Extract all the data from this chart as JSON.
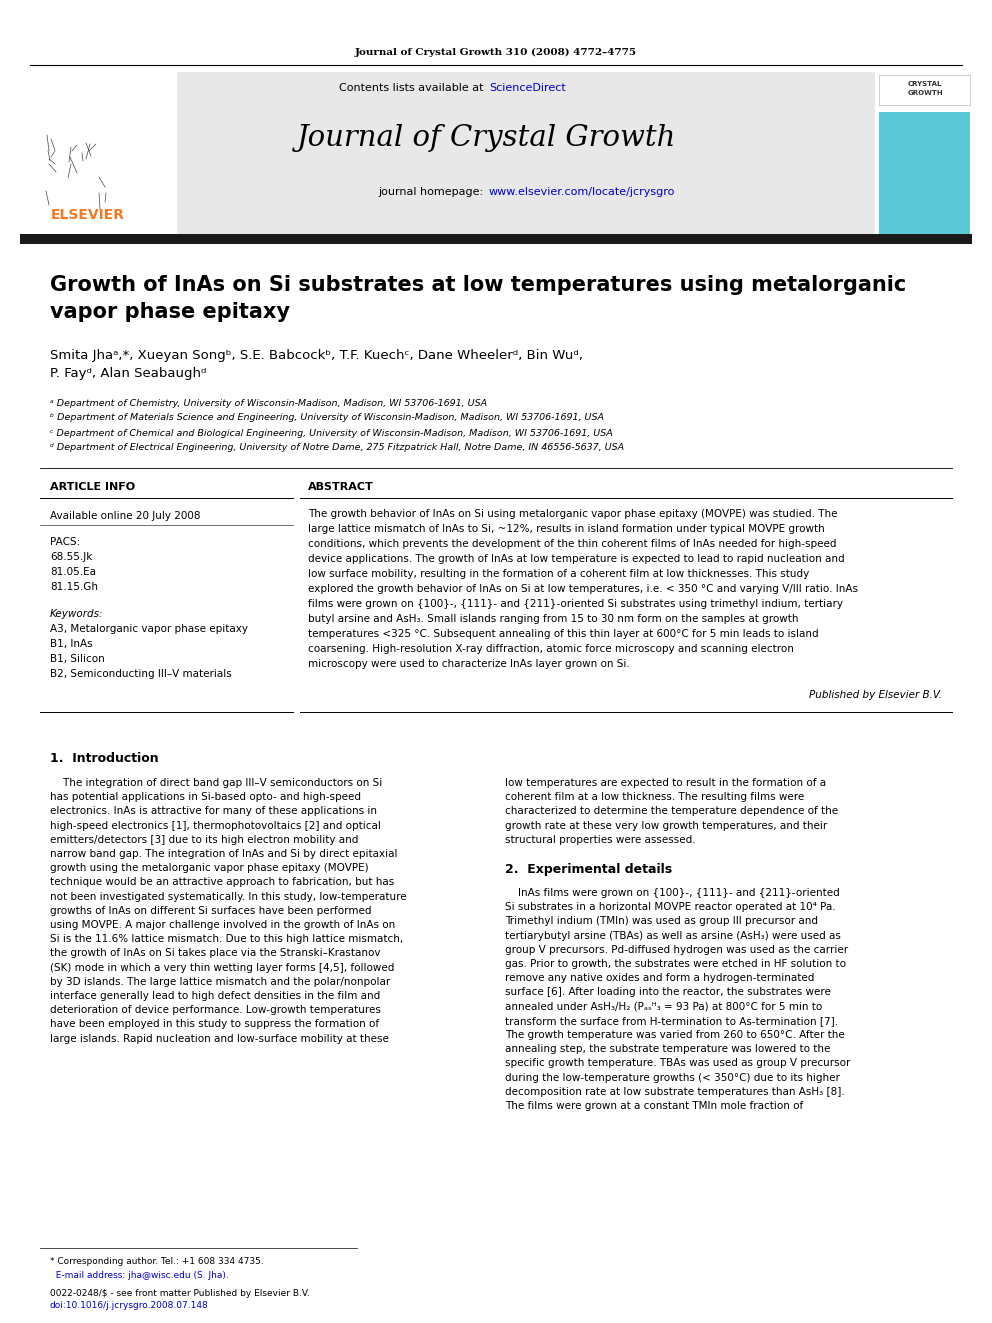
{
  "journal_ref": "Journal of Crystal Growth 310 (2008) 4772–4775",
  "contents_line": "Contents lists available at",
  "sciencedirect": "ScienceDirect",
  "journal_name": "Journal of Crystal Growth",
  "homepage_prefix": "journal homepage: ",
  "homepage_url": "www.elsevier.com/locate/jcrysgro",
  "title_line1": "Growth of InAs on Si substrates at low temperatures using metalorganic",
  "title_line2": "vapor phase epitaxy",
  "authors": "Smita Jhaᵃ,*, Xueyan Songᵇ, S.E. Babcockᵇ, T.F. Kuechᶜ, Dane Wheelerᵈ, Bin Wuᵈ,",
  "authors2": "P. Fayᵈ, Alan Seabaughᵈ",
  "affil_a": "ᵃ Department of Chemistry, University of Wisconsin-Madison, Madison, WI 53706-1691, USA",
  "affil_b": "ᵇ Department of Materials Science and Engineering, University of Wisconsin-Madison, Madison, WI 53706-1691, USA",
  "affil_c": "ᶜ Department of Chemical and Biological Engineering, University of Wisconsin-Madison, Madison, WI 53706-1691, USA",
  "affil_d": "ᵈ Department of Electrical Engineering, University of Notre Dame, 275 Fitzpatrick Hall, Notre Dame, IN 46556-5637, USA",
  "article_info_header": "ARTICLE INFO",
  "available": "Available online 20 July 2008",
  "pacs_header": "PACS:",
  "pacs1": "68.55.Jk",
  "pacs2": "81.05.Ea",
  "pacs3": "81.15.Gh",
  "keywords_header": "Keywords:",
  "kw1": "A3, Metalorganic vapor phase epitaxy",
  "kw2": "B1, InAs",
  "kw3": "B1, Silicon",
  "kw4": "B2, Semiconducting III–V materials",
  "abstract_header": "ABSTRACT",
  "abstract_text": "The growth behavior of InAs on Si using metalorganic vapor phase epitaxy (MOVPE) was studied. The\nlarge lattice mismatch of InAs to Si, ~12%, results in island formation under typical MOVPE growth\nconditions, which prevents the development of the thin coherent films of InAs needed for high-speed\ndevice applications. The growth of InAs at low temperature is expected to lead to rapid nucleation and\nlow surface mobility, resulting in the formation of a coherent film at low thicknesses. This study\nexplored the growth behavior of InAs on Si at low temperatures, i.e. < 350 °C and varying V/III ratio. InAs\nfilms were grown on {100}-, {111}- and {211}-oriented Si substrates using trimethyl indium, tertiary\nbutyl arsine and AsH₃. Small islands ranging from 15 to 30 nm form on the samples at growth\ntemperatures <325 °C. Subsequent annealing of this thin layer at 600°C for 5 min leads to island\ncoarsening. High-resolution X-ray diffraction, atomic force microscopy and scanning electron\nmicroscopy were used to characterize InAs layer grown on Si.",
  "published_by": "Published by Elsevier B.V.",
  "intro_header": "1.  Introduction",
  "intro_col1_lines": [
    "    The integration of direct band gap III–V semiconductors on Si",
    "has potential applications in Si-based opto- and high-speed",
    "electronics. InAs is attractive for many of these applications in",
    "high-speed electronics [1], thermophotovoltaics [2] and optical",
    "emitters/detectors [3] due to its high electron mobility and",
    "narrow band gap. The integration of InAs and Si by direct epitaxial",
    "growth using the metalorganic vapor phase epitaxy (MOVPE)",
    "technique would be an attractive approach to fabrication, but has",
    "not been investigated systematically. In this study, low-temperature",
    "growths of InAs on different Si surfaces have been performed",
    "using MOVPE. A major challenge involved in the growth of InAs on",
    "Si is the 11.6% lattice mismatch. Due to this high lattice mismatch,",
    "the growth of InAs on Si takes place via the Stranski–Krastanov",
    "(SK) mode in which a very thin wetting layer forms [4,5], followed",
    "by 3D islands. The large lattice mismatch and the polar/nonpolar",
    "interface generally lead to high defect densities in the film and",
    "deterioration of device performance. Low-growth temperatures",
    "have been employed in this study to suppress the formation of",
    "large islands. Rapid nucleation and low-surface mobility at these"
  ],
  "intro_col2_lines": [
    "low temperatures are expected to result in the formation of a",
    "coherent film at a low thickness. The resulting films were",
    "characterized to determine the temperature dependence of the",
    "growth rate at these very low growth temperatures, and their",
    "structural properties were assessed."
  ],
  "exp_header": "2.  Experimental details",
  "exp_col2_lines": [
    "    InAs films were grown on {100}-, {111}- and {211}-oriented",
    "Si substrates in a horizontal MOVPE reactor operated at 10⁴ Pa.",
    "Trimethyl indium (TMIn) was used as group III precursor and",
    "tertiarybutyl arsine (TBAs) as well as arsine (AsH₃) were used as",
    "group V precursors. Pd-diffused hydrogen was used as the carrier",
    "gas. Prior to growth, the substrates were etched in HF solution to",
    "remove any native oxides and form a hydrogen-terminated",
    "surface [6]. After loading into the reactor, the substrates were",
    "annealed under AsH₃/H₂ (Pₐₛᴴ₃ = 93 Pa) at 800°C for 5 min to",
    "transform the surface from H-termination to As-termination [7].",
    "The growth temperature was varied from 260 to 650°C. After the",
    "annealing step, the substrate temperature was lowered to the",
    "specific growth temperature. TBAs was used as group V precursor",
    "during the low-temperature growths (< 350°C) due to its higher",
    "decomposition rate at low substrate temperatures than AsH₃ [8].",
    "The films were grown at a constant TMIn mole fraction of"
  ],
  "footnote1": "* Corresponding author. Tel.: +1 608 334 4735.",
  "footnote2": "  E-mail address: jha@wisc.edu (S. Jha).",
  "footnote3": "0022-0248/$ - see front matter Published by Elsevier B.V.",
  "footnote4": "doi:10.1016/j.jcrysgro.2008.07.148",
  "bg_color": "#ffffff",
  "header_bg": "#e8e8e8",
  "dark_bar_color": "#1a1a1a",
  "link_color": "#0000cc",
  "elsevier_orange": "#f47920",
  "crystal_growth_blue": "#5bc8d8"
}
